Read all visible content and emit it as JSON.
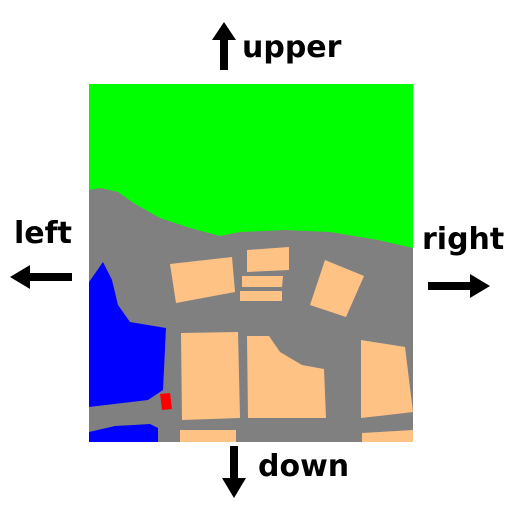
{
  "directions": {
    "upper": "upper",
    "left": "left",
    "right": "right",
    "down": "down"
  },
  "colors": {
    "vegetation": "#00ff00",
    "road": "#808080",
    "water": "#0000ff",
    "building": "#ffc285",
    "marker": "#ff0000",
    "arrow": "#000000"
  }
}
